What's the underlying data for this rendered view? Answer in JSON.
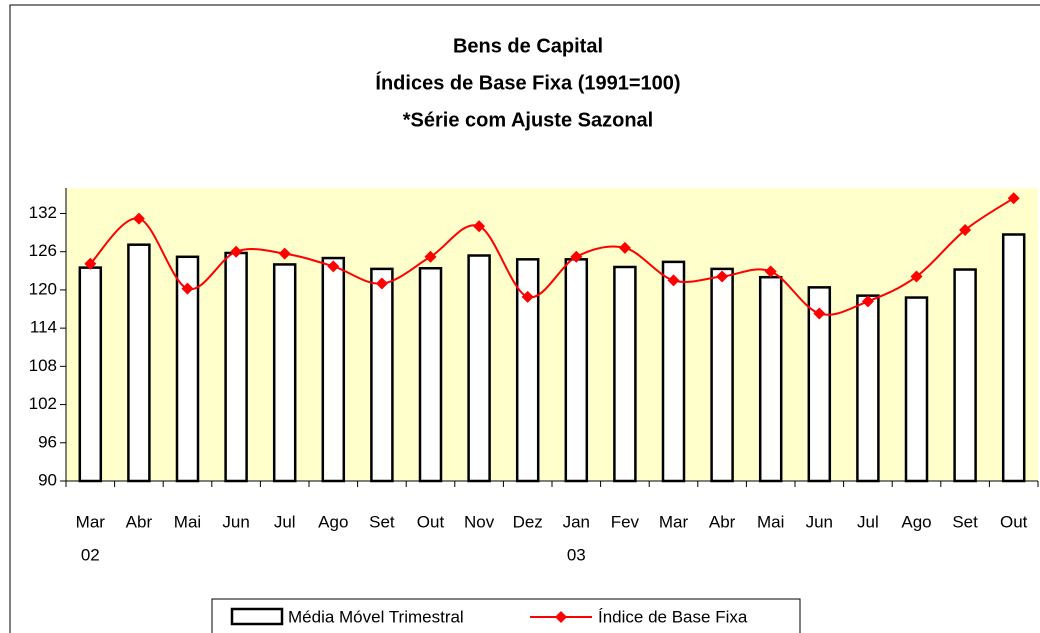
{
  "chart_data": {
    "type": "bar-line",
    "title": [
      "Bens de Capital",
      "Índices de Base Fixa (1991=100)",
      "*Série com Ajuste Sazonal"
    ],
    "categories": [
      "Mar",
      "Abr",
      "Mai",
      "Jun",
      "Jul",
      "Ago",
      "Set",
      "Out",
      "Nov",
      "Dez",
      "Jan",
      "Fev",
      "Mar",
      "Abr",
      "Mai",
      "Jun",
      "Jul",
      "Ago",
      "Set",
      "Out"
    ],
    "category_years": [
      "02",
      null,
      null,
      null,
      null,
      null,
      null,
      null,
      null,
      null,
      "03",
      null,
      null,
      null,
      null,
      null,
      null,
      null,
      null,
      null
    ],
    "series": [
      {
        "name": "Média Móvel Trimestral",
        "type": "bar",
        "color": "#ffffff",
        "values": [
          123.5,
          127.1,
          125.2,
          125.8,
          124.0,
          125.0,
          123.3,
          123.4,
          125.4,
          124.8,
          124.8,
          123.6,
          124.4,
          123.3,
          122.0,
          120.4,
          119.1,
          118.8,
          123.2,
          128.7
        ]
      },
      {
        "name": "Índice de Base Fixa",
        "type": "line",
        "color": "#ff0000",
        "values": [
          124.1,
          131.2,
          120.2,
          126.0,
          125.7,
          123.7,
          121.0,
          125.2,
          130.0,
          118.9,
          125.2,
          126.6,
          121.5,
          122.1,
          122.9,
          116.3,
          118.2,
          122.1,
          129.4,
          134.4
        ]
      }
    ],
    "ylim": [
      90,
      136
    ],
    "yticks": [
      90,
      96,
      102,
      108,
      114,
      120,
      126,
      132
    ],
    "grid": false,
    "legend": "bottom",
    "plot_background": "#ffffcc"
  }
}
